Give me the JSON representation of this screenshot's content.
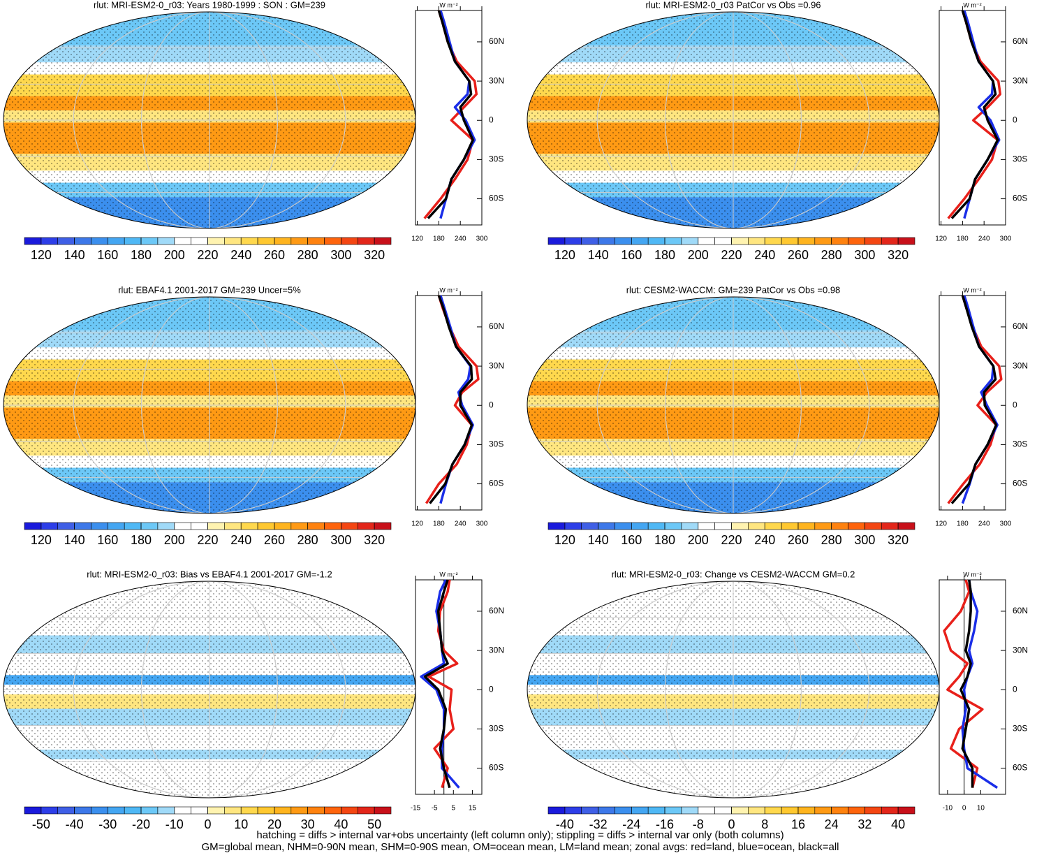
{
  "colorbar_colors": [
    "#1a1adc",
    "#2d3ee8",
    "#3f5fe6",
    "#3d78e9",
    "#3b8fee",
    "#44a6f2",
    "#4fb8f5",
    "#6cc8f7",
    "#a0daf8",
    "#ffffff",
    "#ffffff",
    "#fff3b0",
    "#ffe680",
    "#ffd84d",
    "#ffc830",
    "#ffb41e",
    "#ff9a14",
    "#ff820f",
    "#ff640c",
    "#f44612",
    "#e3261a",
    "#c8101a"
  ],
  "footer": [
    "hatching = diffs > internal var+obs uncertainty (left column only); stippling = diffs > internal var only (both columns)",
    "GM=global mean, NHM=0-90N mean, SHM=0-90S mean, OM=ocean mean, LM=land mean; zonal avgs: red=land, blue=ocean, black=all"
  ],
  "chart_data": [
    {
      "type": "line",
      "title": "rlut: MRI-ESM2-0_r03: Years 1980-1999 : SON : GM=239",
      "units": "W m⁻²",
      "colorbar": {
        "lim": [
          110,
          330
        ],
        "ticks": [
          120,
          140,
          160,
          180,
          200,
          220,
          240,
          260,
          280,
          300,
          320
        ]
      },
      "xlim": [
        115,
        300
      ],
      "xticks": [
        120,
        180,
        240,
        300
      ],
      "ylim": [
        -80,
        84
      ],
      "yticks": [
        {
          "value": 60,
          "label": "60N"
        },
        {
          "value": 30,
          "label": "30N"
        },
        0,
        {
          "value": -30,
          "label": "30S"
        },
        {
          "value": -60,
          "label": "60S"
        }
      ],
      "y": [
        -75,
        -60,
        -45,
        -30,
        -15,
        0,
        10,
        20,
        30,
        45,
        60,
        75,
        84
      ],
      "series": [
        {
          "color": "#e8201a",
          "values": [
            140,
            185,
            225,
            260,
            275,
            215,
            250,
            285,
            280,
            230,
            205,
            190,
            180
          ]
        },
        {
          "color": "#1a2ee8",
          "values": [
            185,
            200,
            215,
            250,
            280,
            255,
            225,
            260,
            265,
            225,
            210,
            195,
            185
          ]
        },
        {
          "color": "#000000",
          "values": [
            150,
            200,
            215,
            250,
            275,
            250,
            240,
            270,
            265,
            225,
            205,
            190,
            180
          ]
        }
      ]
    },
    {
      "type": "line",
      "title": "rlut: MRI-ESM2-0_r03 PatCor vs Obs =0.96",
      "units": "W m⁻²",
      "colorbar": {
        "lim": [
          110,
          330
        ],
        "ticks": [
          120,
          140,
          160,
          180,
          200,
          220,
          240,
          260,
          280,
          300,
          320
        ]
      },
      "xlim": [
        115,
        300
      ],
      "xticks": [
        120,
        180,
        240,
        300
      ],
      "ylim": [
        -80,
        84
      ],
      "yticks": [
        {
          "value": 60,
          "label": "60N"
        },
        {
          "value": 30,
          "label": "30N"
        },
        0,
        {
          "value": -30,
          "label": "30S"
        },
        {
          "value": -60,
          "label": "60S"
        }
      ],
      "y": [
        -75,
        -60,
        -45,
        -30,
        -15,
        0,
        10,
        20,
        30,
        45,
        60,
        75,
        84
      ],
      "series": [
        {
          "color": "#e8201a",
          "values": [
            140,
            185,
            225,
            262,
            278,
            210,
            250,
            285,
            280,
            230,
            205,
            190,
            180
          ]
        },
        {
          "color": "#1a2ee8",
          "values": [
            185,
            200,
            215,
            250,
            282,
            258,
            225,
            262,
            265,
            225,
            210,
            195,
            185
          ]
        },
        {
          "color": "#000000",
          "values": [
            150,
            200,
            215,
            250,
            278,
            250,
            240,
            272,
            265,
            225,
            205,
            190,
            180
          ]
        }
      ]
    },
    {
      "type": "line",
      "title": "rlut: EBAF4.1 2001-2017 GM=239 Uncer=5%",
      "units": "W m⁻²",
      "colorbar": {
        "lim": [
          110,
          330
        ],
        "ticks": [
          120,
          140,
          160,
          180,
          200,
          220,
          240,
          260,
          280,
          300,
          320
        ]
      },
      "xlim": [
        115,
        300
      ],
      "xticks": [
        120,
        180,
        240,
        300
      ],
      "ylim": [
        -80,
        84
      ],
      "yticks": [
        {
          "value": 60,
          "label": "60N"
        },
        {
          "value": 30,
          "label": "30N"
        },
        0,
        {
          "value": -30,
          "label": "30S"
        },
        {
          "value": -60,
          "label": "60S"
        }
      ],
      "y": [
        -75,
        -60,
        -45,
        -30,
        -15,
        0,
        10,
        20,
        30,
        45,
        60,
        75,
        84
      ],
      "series": [
        {
          "color": "#e8201a",
          "values": [
            145,
            180,
            230,
            258,
            272,
            225,
            245,
            290,
            285,
            235,
            210,
            190,
            180
          ]
        },
        {
          "color": "#1a2ee8",
          "values": [
            185,
            200,
            218,
            252,
            275,
            245,
            235,
            262,
            268,
            228,
            212,
            195,
            185
          ]
        },
        {
          "color": "#000000",
          "values": [
            155,
            198,
            218,
            252,
            272,
            240,
            240,
            272,
            270,
            228,
            208,
            192,
            180
          ]
        }
      ]
    },
    {
      "type": "line",
      "title": "rlut: CESM2-WACCM: GM=239 PatCor vs Obs =0.98",
      "units": "W m⁻²",
      "colorbar": {
        "lim": [
          110,
          330
        ],
        "ticks": [
          120,
          140,
          160,
          180,
          200,
          220,
          240,
          260,
          280,
          300,
          320
        ]
      },
      "xlim": [
        115,
        300
      ],
      "xticks": [
        120,
        180,
        240,
        300
      ],
      "ylim": [
        -80,
        84
      ],
      "yticks": [
        {
          "value": 60,
          "label": "60N"
        },
        {
          "value": 30,
          "label": "30N"
        },
        0,
        {
          "value": -30,
          "label": "30S"
        },
        {
          "value": -60,
          "label": "60S"
        }
      ],
      "y": [
        -75,
        -60,
        -45,
        -30,
        -15,
        0,
        10,
        20,
        30,
        45,
        60,
        75,
        84
      ],
      "series": [
        {
          "color": "#e8201a",
          "values": [
            140,
            182,
            228,
            258,
            274,
            222,
            248,
            288,
            282,
            232,
            208,
            190,
            180
          ]
        },
        {
          "color": "#1a2ee8",
          "values": [
            180,
            200,
            216,
            250,
            277,
            248,
            232,
            262,
            266,
            226,
            210,
            195,
            185
          ]
        },
        {
          "color": "#000000",
          "values": [
            150,
            198,
            216,
            250,
            274,
            242,
            240,
            272,
            266,
            226,
            206,
            190,
            180
          ]
        }
      ]
    },
    {
      "type": "line",
      "title": "rlut: MRI-ESM2-0_r03: Bias vs EBAF4.1 2001-2017  GM=-1.2",
      "units": "W m⁻²",
      "zero_line": true,
      "colorbar": {
        "lim": [
          -55,
          55
        ],
        "ticks": [
          -50,
          -40,
          -30,
          -20,
          -10,
          0,
          10,
          20,
          30,
          40,
          50
        ]
      },
      "xlim": [
        -15,
        20
      ],
      "xticks": [
        -15,
        -5,
        5,
        15
      ],
      "ylim": [
        -80,
        84
      ],
      "yticks": [
        {
          "value": 60,
          "label": "60N"
        },
        {
          "value": 30,
          "label": "30N"
        },
        0,
        {
          "value": -30,
          "label": "30S"
        },
        {
          "value": -60,
          "label": "60S"
        }
      ],
      "y": [
        -75,
        -60,
        -45,
        -30,
        -15,
        0,
        10,
        20,
        30,
        45,
        60,
        75,
        84
      ],
      "series": [
        {
          "color": "#e8201a",
          "values": [
            -1,
            2,
            -5,
            5,
            3,
            4,
            -8,
            7,
            0,
            -3,
            -2,
            2,
            3
          ]
        },
        {
          "color": "#1a2ee8",
          "values": [
            8,
            -1,
            -1,
            0,
            0,
            -4,
            -12,
            0,
            -1,
            -2,
            -4,
            -2,
            1
          ]
        },
        {
          "color": "#000000",
          "values": [
            3,
            0,
            -2,
            0,
            1,
            -3,
            -10,
            2,
            -1,
            -2,
            -3,
            0,
            2
          ]
        }
      ]
    },
    {
      "type": "line",
      "title": "rlut: MRI-ESM2-0_r03: Change vs CESM2-WACCM GM=0.2",
      "units": "W m⁻²",
      "zero_line": true,
      "colorbar": {
        "lim": [
          -44,
          44
        ],
        "ticks": [
          -40,
          -32,
          -24,
          -16,
          -8,
          0,
          8,
          16,
          24,
          32,
          40
        ]
      },
      "xlim": [
        -15,
        25
      ],
      "xticks": [
        -10,
        0,
        10
      ],
      "ylim": [
        -80,
        84
      ],
      "yticks": [
        {
          "value": 60,
          "label": "60N"
        },
        {
          "value": 30,
          "label": "30N"
        },
        0,
        {
          "value": -30,
          "label": "30S"
        },
        {
          "value": -60,
          "label": "60S"
        }
      ],
      "y": [
        -75,
        -60,
        -45,
        -30,
        -15,
        0,
        10,
        20,
        30,
        45,
        60,
        75,
        84
      ],
      "series": [
        {
          "color": "#e8201a",
          "values": [
            5,
            8,
            -8,
            -3,
            11,
            -10,
            -3,
            2,
            -8,
            -12,
            -2,
            3,
            1
          ]
        },
        {
          "color": "#1a2ee8",
          "values": [
            20,
            2,
            0,
            -1,
            1,
            0,
            2,
            5,
            3,
            6,
            8,
            4,
            3
          ]
        },
        {
          "color": "#000000",
          "values": [
            5,
            5,
            -1,
            1,
            3,
            -2,
            2,
            4,
            1,
            3,
            4,
            4,
            3
          ]
        }
      ]
    }
  ]
}
